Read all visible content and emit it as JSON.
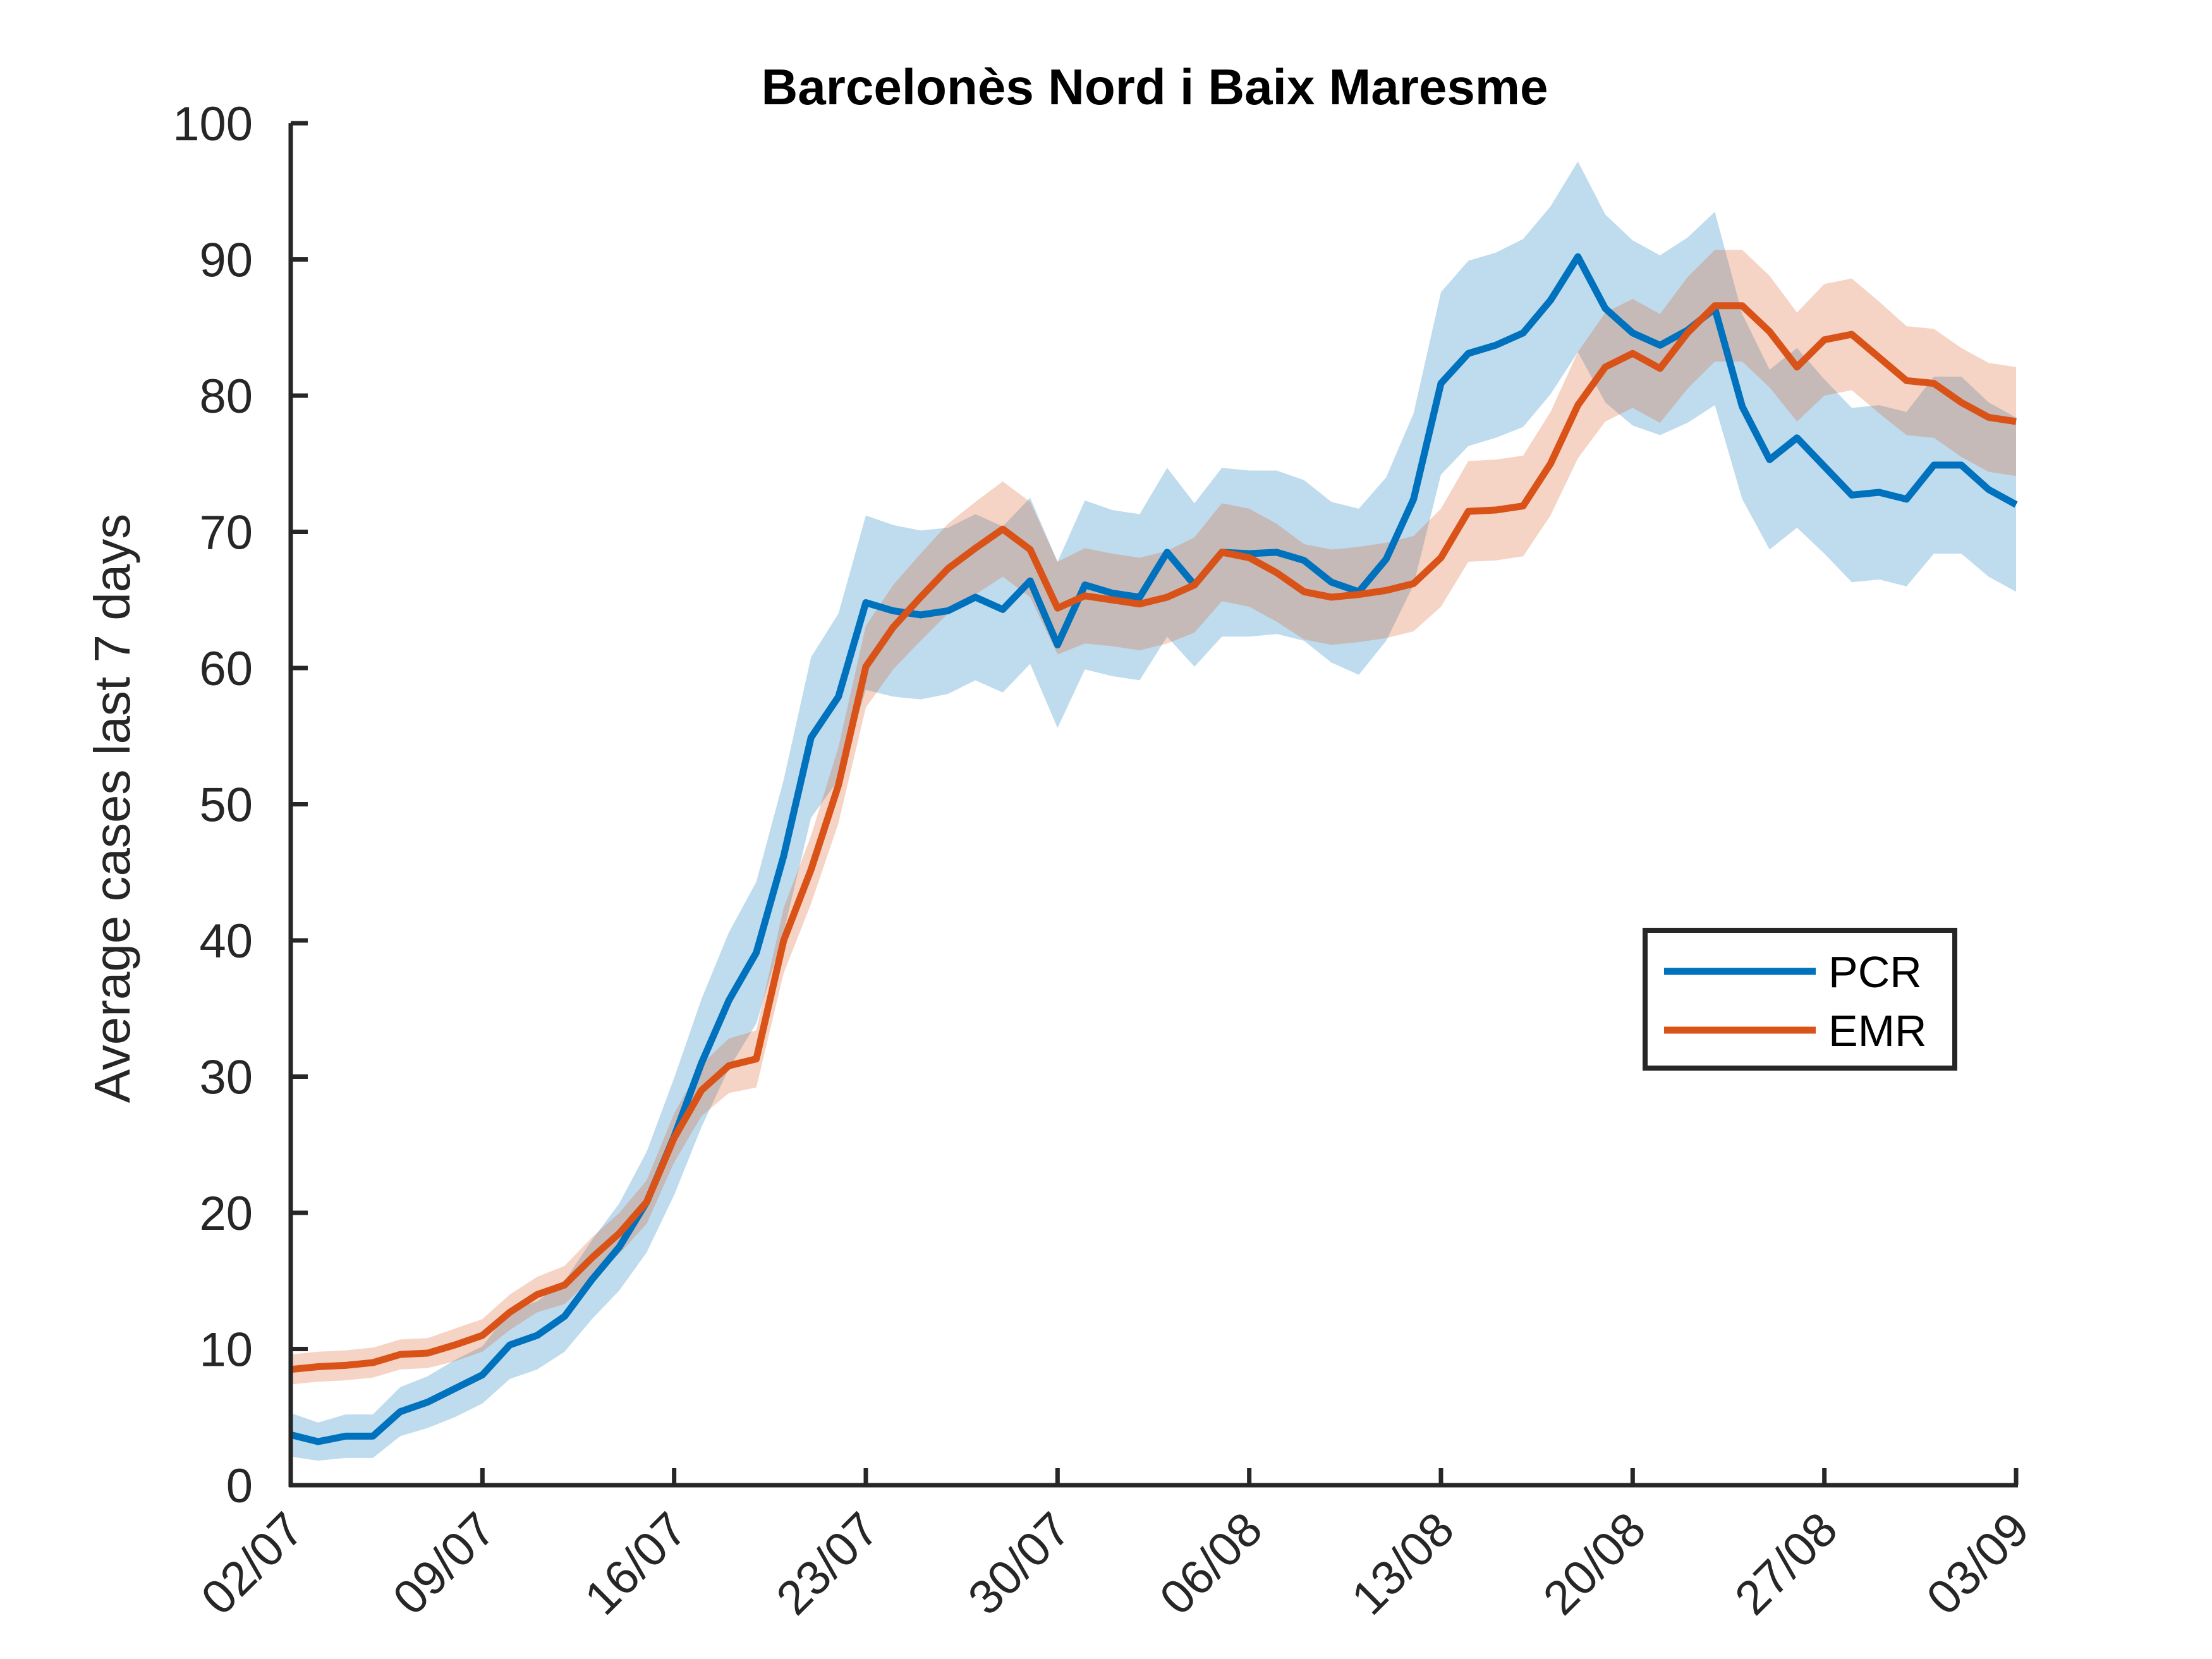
{
  "chart_data": {
    "type": "line",
    "title": "Barcelonès Nord i Baix Maresme",
    "ylabel": "Average cases last 7 days",
    "xlabel": "",
    "ylim": [
      0,
      100
    ],
    "yticks": [
      0,
      10,
      20,
      30,
      40,
      50,
      60,
      70,
      80,
      90,
      100
    ],
    "xlim": [
      "02/07",
      "03/09"
    ],
    "xticks": [
      "02/07",
      "09/07",
      "16/07",
      "23/07",
      "30/07",
      "06/08",
      "13/08",
      "20/08",
      "27/08",
      "03/09"
    ],
    "grid": false,
    "legend_position": "right",
    "x_dates": [
      "02/07",
      "03/07",
      "04/07",
      "05/07",
      "06/07",
      "07/07",
      "08/07",
      "09/07",
      "10/07",
      "11/07",
      "12/07",
      "13/07",
      "14/07",
      "15/07",
      "16/07",
      "17/07",
      "18/07",
      "19/07",
      "20/07",
      "21/07",
      "22/07",
      "23/07",
      "24/07",
      "25/07",
      "26/07",
      "27/07",
      "28/07",
      "29/07",
      "30/07",
      "31/07",
      "01/08",
      "02/08",
      "03/08",
      "04/08",
      "05/08",
      "06/08",
      "07/08",
      "08/08",
      "09/08",
      "10/08",
      "11/08",
      "12/08",
      "13/08",
      "14/08",
      "15/08",
      "16/08",
      "17/08",
      "18/08",
      "19/08",
      "20/08",
      "21/08",
      "22/08",
      "23/08",
      "24/08",
      "25/08",
      "26/08",
      "27/08",
      "28/08",
      "29/08",
      "30/08",
      "31/08",
      "01/09",
      "02/09",
      "03/09"
    ],
    "series": [
      {
        "name": "PCR",
        "color": "#0072BD",
        "band_color": "#0072BD",
        "values": [
          3.7,
          3.2,
          3.6,
          3.6,
          5.4,
          6.1,
          7.1,
          8.1,
          10.3,
          11.0,
          12.4,
          15.1,
          17.5,
          20.8,
          25.6,
          31.0,
          35.6,
          39.1,
          46.2,
          54.9,
          57.9,
          64.8,
          64.2,
          63.9,
          64.2,
          65.2,
          64.3,
          66.4,
          61.7,
          66.1,
          65.5,
          65.2,
          68.5,
          66.1,
          68.5,
          68.4,
          68.5,
          67.9,
          66.3,
          65.6,
          68.0,
          72.4,
          80.9,
          83.1,
          83.7,
          84.6,
          87.0,
          90.2,
          86.4,
          84.6,
          83.7,
          84.8,
          86.4,
          79.2,
          75.3,
          76.9,
          74.8,
          72.7,
          72.9,
          72.4,
          74.9,
          74.9,
          73.1,
          72.0
        ],
        "lower": [
          2.1,
          1.8,
          2.0,
          2.0,
          3.6,
          4.2,
          5.0,
          6.0,
          7.8,
          8.5,
          9.8,
          12.2,
          14.3,
          17.1,
          21.3,
          26.3,
          30.6,
          33.9,
          40.6,
          49.0,
          51.8,
          58.4,
          57.9,
          57.7,
          58.1,
          59.1,
          58.2,
          60.3,
          55.6,
          59.9,
          59.4,
          59.1,
          62.3,
          60.1,
          62.3,
          62.3,
          62.5,
          62.0,
          60.4,
          59.5,
          62.0,
          66.1,
          74.2,
          76.3,
          76.9,
          77.7,
          80.1,
          83.2,
          79.5,
          77.8,
          77.1,
          78.0,
          79.3,
          72.4,
          68.7,
          70.3,
          68.4,
          66.3,
          66.5,
          66.0,
          68.4,
          68.4,
          66.7,
          65.6
        ],
        "upper": [
          5.3,
          4.6,
          5.2,
          5.2,
          7.2,
          8.0,
          9.2,
          10.2,
          12.8,
          13.5,
          15.0,
          18.0,
          20.7,
          24.5,
          29.9,
          35.7,
          40.6,
          44.3,
          51.8,
          60.8,
          64.0,
          71.2,
          70.5,
          70.1,
          70.3,
          71.3,
          70.4,
          72.5,
          67.8,
          72.3,
          71.6,
          71.3,
          74.7,
          72.1,
          74.7,
          74.5,
          74.5,
          73.8,
          72.2,
          71.7,
          74.0,
          78.7,
          87.6,
          89.9,
          90.5,
          91.5,
          93.9,
          97.2,
          93.3,
          91.4,
          90.3,
          91.6,
          93.5,
          86.0,
          81.9,
          83.5,
          81.2,
          79.1,
          79.3,
          78.8,
          81.4,
          81.4,
          79.5,
          78.4
        ]
      },
      {
        "name": "EMR",
        "color": "#D95319",
        "band_color": "#D95319",
        "values": [
          8.5,
          8.7,
          8.8,
          9.0,
          9.6,
          9.7,
          10.3,
          11.0,
          12.7,
          14.0,
          14.7,
          16.7,
          18.5,
          20.8,
          25.5,
          29.0,
          30.8,
          31.3,
          40.0,
          45.2,
          51.4,
          60.1,
          63.0,
          65.2,
          67.3,
          68.8,
          70.2,
          68.7,
          64.4,
          65.3,
          65.0,
          64.7,
          65.2,
          66.1,
          68.5,
          68.1,
          67.0,
          65.6,
          65.2,
          65.4,
          65.7,
          66.2,
          68.1,
          71.5,
          71.6,
          71.9,
          75.0,
          79.3,
          82.1,
          83.1,
          82.0,
          84.6,
          86.6,
          86.6,
          84.7,
          82.1,
          84.1,
          84.5,
          82.8,
          81.1,
          80.9,
          79.5,
          78.4,
          78.1
        ],
        "lower": [
          7.4,
          7.6,
          7.7,
          7.9,
          8.5,
          8.6,
          9.1,
          9.8,
          11.4,
          12.7,
          13.3,
          15.2,
          17.0,
          19.2,
          23.7,
          27.1,
          28.8,
          29.2,
          37.6,
          42.7,
          48.6,
          57.1,
          59.9,
          62.0,
          64.0,
          65.4,
          66.7,
          65.2,
          61.0,
          61.8,
          61.6,
          61.3,
          61.8,
          62.6,
          64.9,
          64.5,
          63.4,
          62.1,
          61.7,
          61.9,
          62.2,
          62.7,
          64.5,
          67.8,
          67.9,
          68.2,
          71.2,
          75.4,
          78.1,
          79.1,
          78.0,
          80.5,
          82.5,
          82.5,
          80.6,
          78.1,
          80.0,
          80.4,
          78.7,
          77.1,
          76.9,
          75.5,
          74.4,
          74.1
        ],
        "upper": [
          9.6,
          9.8,
          9.9,
          10.1,
          10.7,
          10.8,
          11.5,
          12.2,
          14.0,
          15.3,
          16.1,
          18.2,
          20.0,
          22.4,
          27.3,
          30.9,
          32.8,
          33.4,
          42.4,
          47.7,
          54.2,
          63.1,
          66.1,
          68.4,
          70.6,
          72.2,
          73.7,
          72.2,
          67.8,
          68.8,
          68.4,
          68.1,
          68.6,
          69.6,
          72.1,
          71.7,
          70.6,
          69.1,
          68.7,
          68.9,
          69.2,
          69.7,
          71.7,
          75.2,
          75.3,
          75.6,
          78.8,
          83.2,
          86.1,
          87.1,
          86.0,
          88.7,
          90.7,
          90.7,
          88.8,
          86.1,
          88.2,
          88.6,
          86.9,
          85.1,
          84.9,
          83.5,
          82.4,
          82.1
        ]
      }
    ]
  }
}
